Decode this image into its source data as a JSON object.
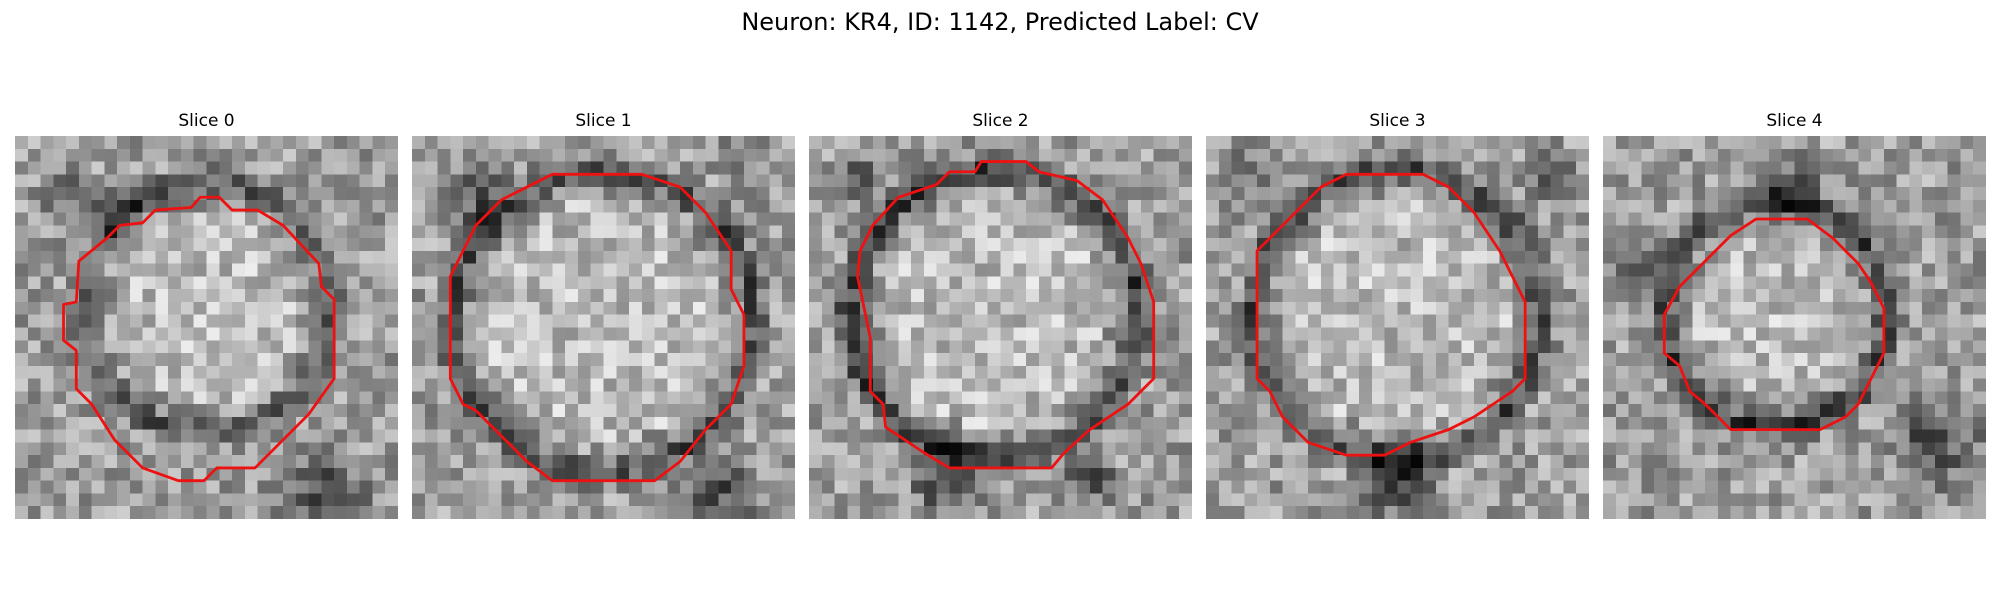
{
  "figure": {
    "title": "Neuron: KR4, ID: 1142, Predicted Label: CV"
  },
  "panels": [
    {
      "title": "Slice 0"
    },
    {
      "title": "Slice 1"
    },
    {
      "title": "Slice 2"
    },
    {
      "title": "Slice 3"
    },
    {
      "title": "Slice 4"
    }
  ],
  "colors": {
    "contour": "#ee1111",
    "background": "#ffffff"
  },
  "image_style": "grayscale pixelated microscopy crop with a bright roughly circular cell body outlined by a red contour"
}
